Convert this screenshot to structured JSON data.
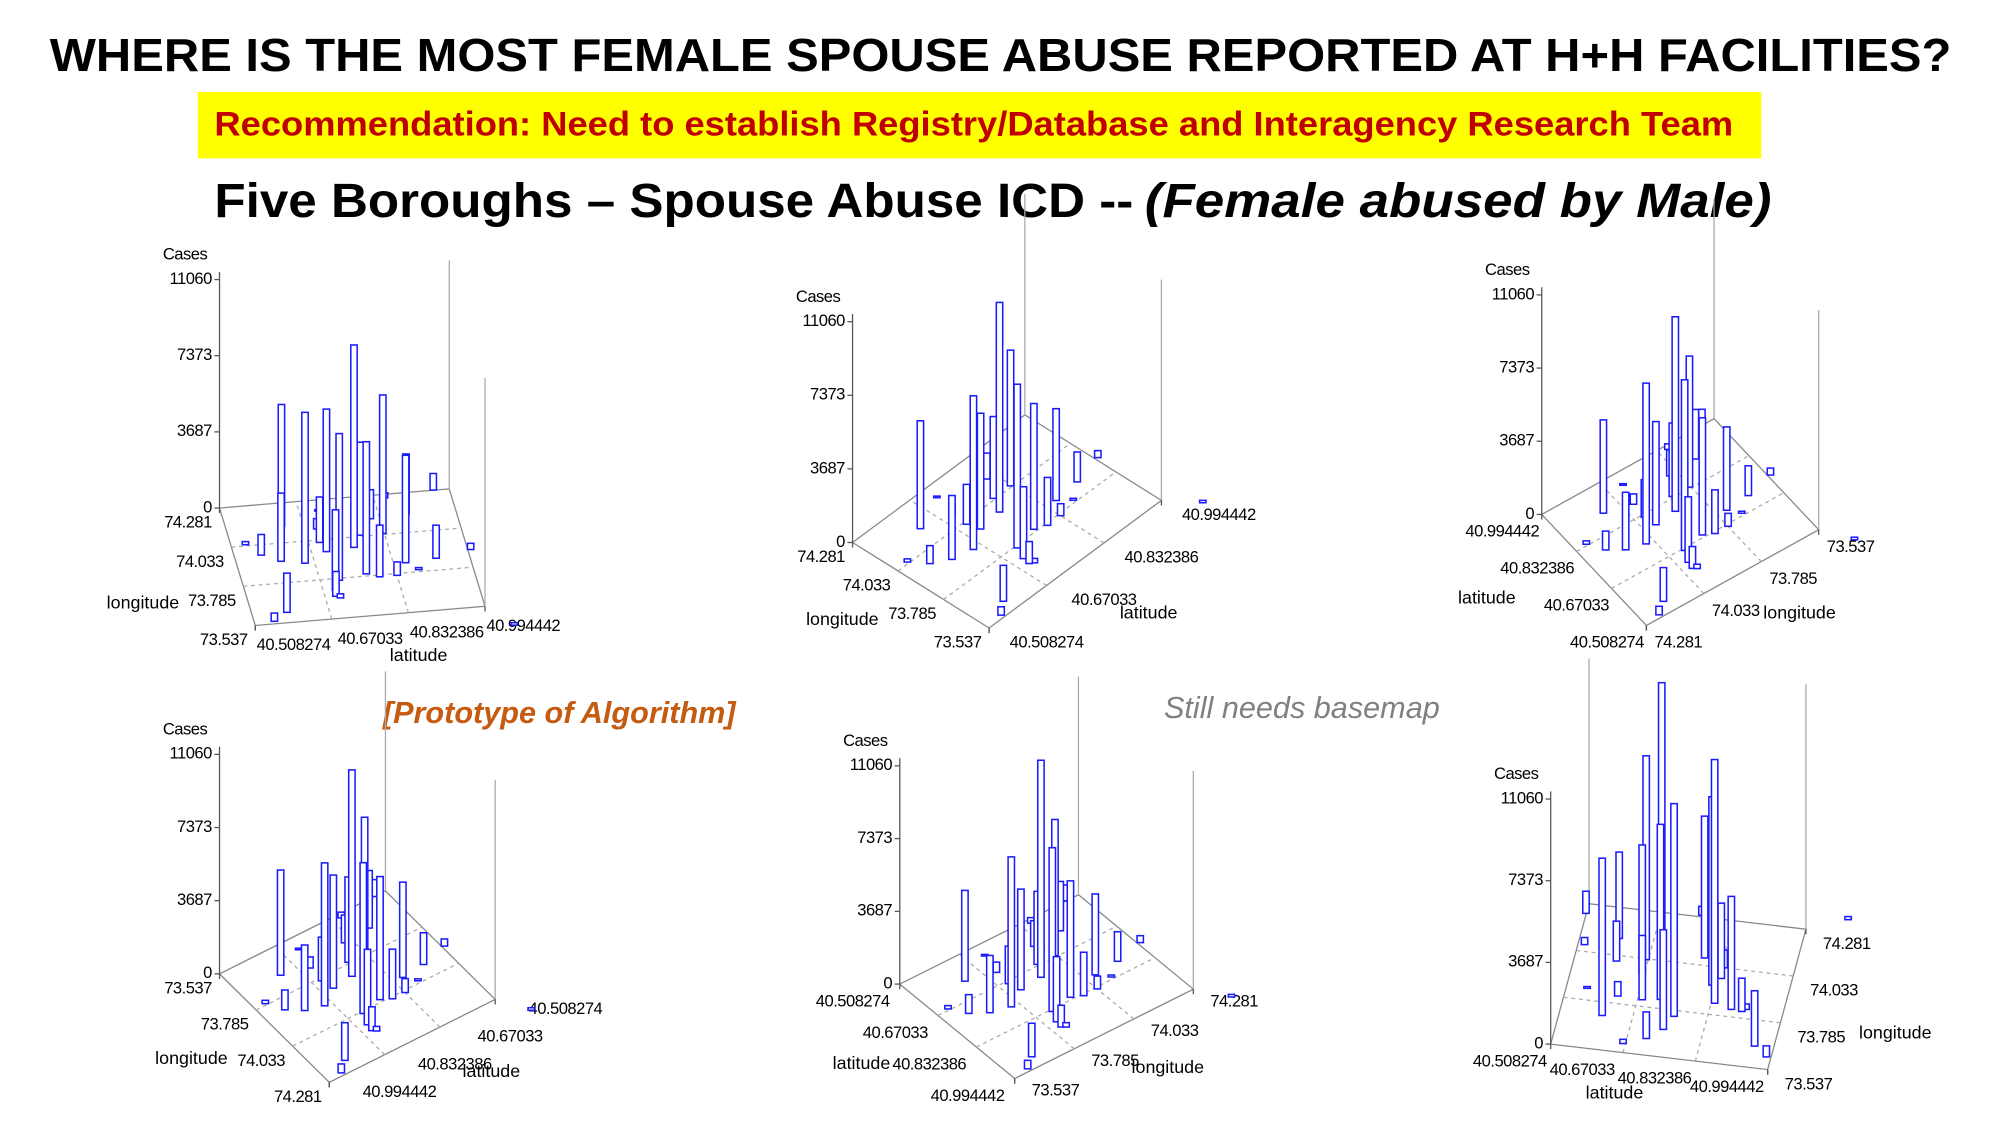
{
  "header": {
    "title": "WHERE IS THE MOST FEMALE SPOUSE ABUSE REPORTED AT H+H FACILITIES?",
    "recommendation": "Recommendation: Need to establish Registry/Database and Interagency Research Team",
    "subtitle": "Five Boroughs – Spouse Abuse ICD --",
    "subtitle_emphasis": "(Female abused by Male)"
  },
  "annotations": [
    "[Prototype of Algorithm]",
    "Still needs basemap"
  ],
  "chart_data": [
    {
      "type": "bar3d",
      "color": "#1a1aff",
      "grid": true,
      "zlabel": "Cases",
      "zlim": [
        0,
        11060
      ],
      "zticks": [
        0,
        3687,
        7373,
        11060
      ],
      "axis1_label": "longitude",
      "axis1_ticks": [
        74.281,
        74.033,
        73.785,
        73.537
      ],
      "axis2_label": "latitude",
      "axis2_ticks": [
        40.508274,
        40.67033,
        40.832386,
        40.994442
      ],
      "values": [
        9800,
        7100,
        7300,
        6700,
        6400,
        6900,
        5900,
        5200,
        4500,
        3900,
        3300,
        2900,
        2500,
        2200,
        1900,
        1600,
        1400,
        1200,
        1000,
        800,
        650,
        500,
        400,
        300,
        250,
        200,
        150,
        120,
        100,
        80
      ]
    },
    {
      "type": "bar3d",
      "color": "#1a1aff",
      "grid": true,
      "zlabel": "Cases",
      "zlim": [
        0,
        11060
      ],
      "zticks": [
        0,
        3687,
        7373,
        11060
      ],
      "axis1_label": "longitude",
      "axis1_ticks": [
        74.281,
        74.033,
        73.785,
        73.537
      ],
      "axis2_label": "latitude",
      "axis2_ticks": [
        40.508274,
        40.67033,
        40.832386,
        40.994442
      ],
      "values": [
        10500,
        8200,
        7700,
        6800,
        6300,
        5800,
        5400,
        4600,
        4100,
        3600,
        3200,
        2700,
        2400,
        2000,
        1800,
        1500,
        1300,
        1100,
        900,
        750,
        600,
        500,
        420,
        350,
        280,
        220,
        160,
        120,
        100,
        80
      ]
    },
    {
      "type": "bar3d",
      "color": "#1a1aff",
      "grid": true,
      "zlabel": "Cases",
      "zlim": [
        0,
        11060
      ],
      "zticks": [
        0,
        3687,
        7373,
        11060
      ],
      "axis1_label": "latitude",
      "axis1_ticks": [
        40.994442,
        40.832386,
        40.67033,
        40.508274
      ],
      "axis2_label": "longitude",
      "axis2_ticks": [
        74.281,
        74.033,
        73.785,
        73.537
      ],
      "values": [
        9800,
        8600,
        8100,
        6600,
        5900,
        5200,
        4700,
        4200,
        3700,
        3300,
        2900,
        2500,
        2200,
        1900,
        1700,
        1500,
        1300,
        1100,
        950,
        800,
        650,
        520,
        430,
        350,
        280,
        220,
        170,
        130,
        100,
        80
      ]
    },
    {
      "type": "bar3d",
      "color": "#1a1aff",
      "grid": true,
      "zlabel": "Cases",
      "zlim": [
        0,
        11060
      ],
      "zticks": [
        0,
        3687,
        7373,
        11060
      ],
      "axis1_label": "longitude",
      "axis1_ticks": [
        73.537,
        73.785,
        74.033,
        74.281
      ],
      "axis2_label": "latitude",
      "axis2_ticks": [
        40.994442,
        40.832386,
        40.67033,
        40.508274
      ],
      "values": [
        10400,
        7600,
        7200,
        6900,
        6200,
        5700,
        5300,
        4800,
        4300,
        3800,
        3300,
        2900,
        2500,
        2200,
        1900,
        1600,
        1400,
        1200,
        1000,
        850,
        700,
        560,
        450,
        360,
        290,
        230,
        170,
        130,
        100,
        80
      ]
    },
    {
      "type": "bar3d",
      "color": "#1a1aff",
      "grid": true,
      "zlabel": "Cases",
      "zlim": [
        0,
        11060
      ],
      "zticks": [
        0,
        3687,
        7373,
        11060
      ],
      "axis1_label": "latitude",
      "axis1_ticks": [
        40.508274,
        40.67033,
        40.832386,
        40.994442
      ],
      "axis2_label": "longitude",
      "axis2_ticks": [
        73.537,
        73.785,
        74.033,
        74.281
      ],
      "values": [
        11000,
        8300,
        7600,
        6900,
        5900,
        5100,
        4600,
        4100,
        3700,
        3300,
        2900,
        2500,
        2200,
        1900,
        1700,
        1500,
        1300,
        1100,
        950,
        800,
        650,
        520,
        430,
        350,
        280,
        220,
        170,
        130,
        100,
        80
      ]
    },
    {
      "type": "bar3d",
      "color": "#1a1aff",
      "grid": true,
      "zlabel": "Cases",
      "zlim": [
        0,
        11060
      ],
      "zticks": [
        0,
        3687,
        7373,
        11060
      ],
      "axis1_label": "latitude",
      "axis1_ticks": [
        40.508274,
        40.67033,
        40.832386,
        40.994442
      ],
      "axis2_label": "longitude",
      "axis2_ticks": [
        73.537,
        73.785,
        74.033,
        74.281
      ],
      "values": [
        13500,
        11000,
        9600,
        9200,
        8500,
        7900,
        7100,
        6400,
        5800,
        5100,
        4500,
        3900,
        3400,
        2900,
        2500,
        2100,
        1800,
        1500,
        1200,
        1000,
        800,
        650,
        500,
        400,
        320,
        250,
        190,
        140,
        100,
        80
      ]
    }
  ]
}
